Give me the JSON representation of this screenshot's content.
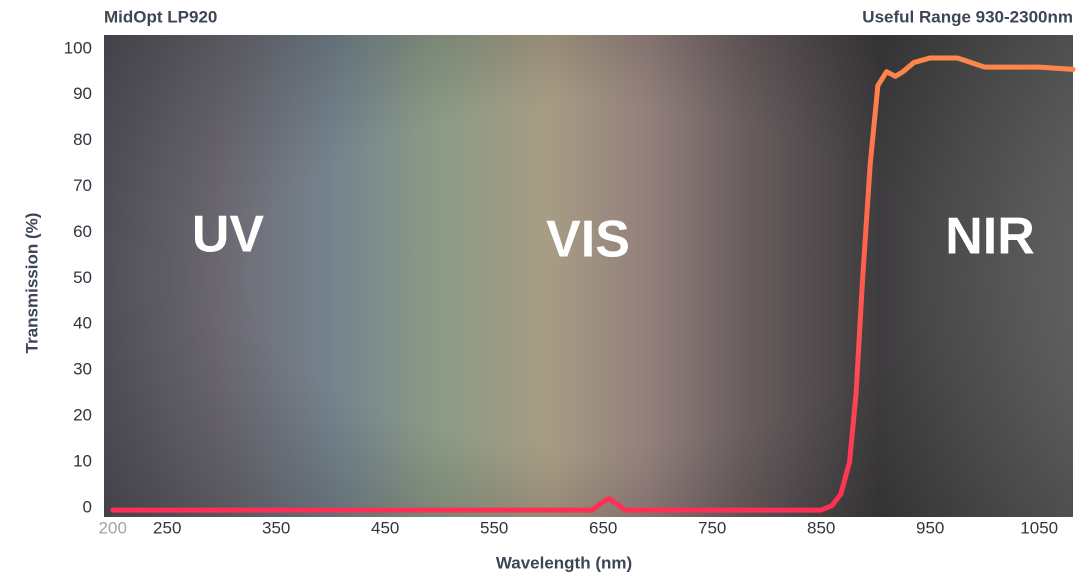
{
  "chart_data": {
    "type": "line",
    "title": "MidOpt LP920",
    "subtitle": "Useful Range 930-2300nm",
    "x_label": "Wavelength (nm)",
    "y_label": "Transmission (%)",
    "annotations": [
      "UV",
      "VIS",
      "NIR"
    ],
    "x": [
      200,
      640,
      648,
      655,
      662,
      670,
      850,
      860,
      868,
      876,
      882,
      888,
      895,
      902,
      910,
      918,
      925,
      935,
      950,
      975,
      1000,
      1025,
      1050,
      1081
    ],
    "series": [
      {
        "name": "MidOpt LP920",
        "color": "#ff2d55",
        "color_end": "#ff8c4a",
        "values": [
          -0.5,
          -0.5,
          1,
          2,
          1,
          -0.5,
          -0.5,
          0.5,
          3,
          10,
          25,
          50,
          75,
          92,
          95,
          94,
          95,
          97,
          98,
          98,
          96,
          96,
          96,
          95.5
        ]
      }
    ],
    "xlim": [
      192,
      1081
    ],
    "ylim": [
      -2,
      103
    ],
    "xticks": [
      200,
      250,
      350,
      450,
      550,
      650,
      750,
      850,
      950,
      1050
    ],
    "yticks": [
      0,
      10,
      20,
      30,
      40,
      50,
      60,
      70,
      80,
      90,
      100
    ]
  }
}
